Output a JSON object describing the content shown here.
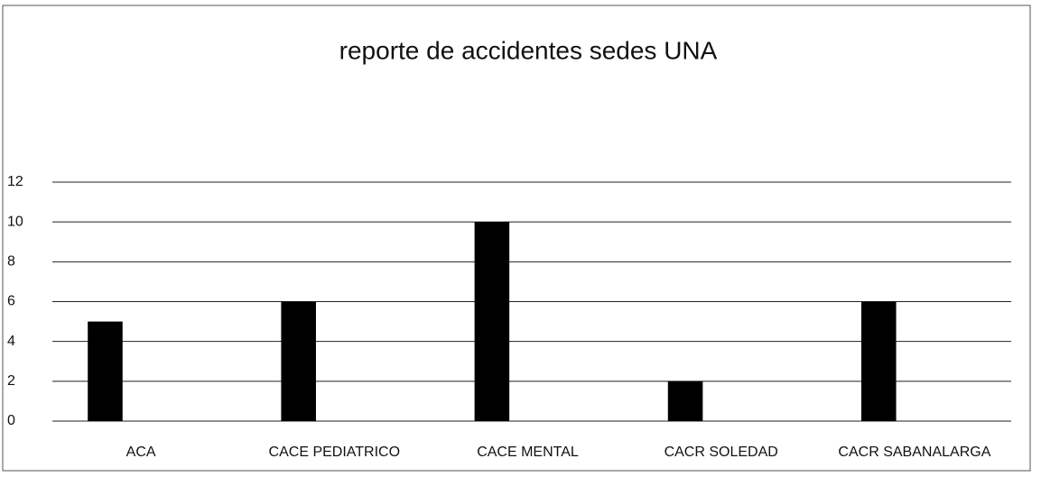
{
  "chart_data": {
    "type": "bar",
    "title": "reporte de accidentes sedes UNA",
    "categories": [
      "ACA",
      "CACE PEDIATRICO",
      "CACE MENTAL",
      "CACR SOLEDAD",
      "CACR SABANALARGA"
    ],
    "values": [
      5,
      6,
      10,
      2,
      6
    ],
    "color": "#000000",
    "ylim": [
      0,
      12
    ],
    "yticks": [
      0,
      2,
      4,
      6,
      8,
      10,
      12
    ],
    "grid": true
  }
}
